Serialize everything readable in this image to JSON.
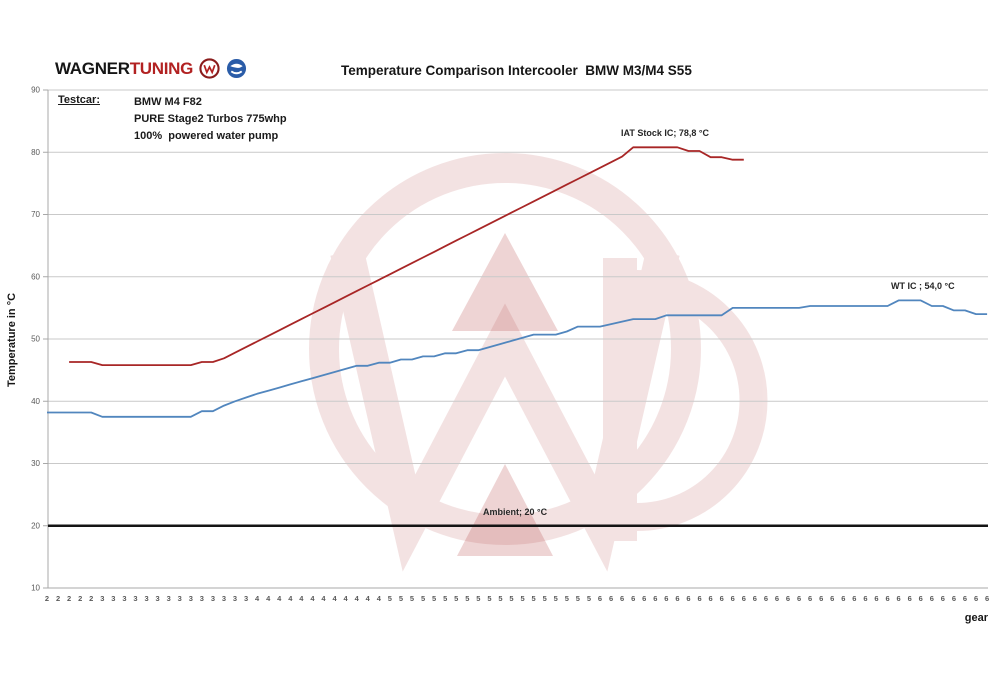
{
  "header": {
    "brand_wagner": "WAGNER",
    "brand_tuning": "TUNING",
    "title": "Temperature Comparison Intercooler  BMW M3/M4 S55"
  },
  "testcar": {
    "label": "Testcar:",
    "lines": [
      "BMW M4 F82",
      "PURE Stage2 Turbos 775whp",
      "100%  powered water pump"
    ]
  },
  "chart_data": {
    "type": "line",
    "title": "Temperature Comparison Intercooler BMW M3/M4 S55",
    "xlabel": "gear",
    "ylabel": "Temperature in °C",
    "ylim": [
      10,
      90
    ],
    "y_ticks": [
      10,
      20,
      30,
      40,
      50,
      60,
      70,
      80,
      90
    ],
    "grid": true,
    "legend": "none",
    "categories_gear": [
      "2",
      "2",
      "2",
      "2",
      "2",
      "3",
      "3",
      "3",
      "3",
      "3",
      "3",
      "3",
      "3",
      "3",
      "3",
      "3",
      "3",
      "3",
      "3",
      "4",
      "4",
      "4",
      "4",
      "4",
      "4",
      "4",
      "4",
      "4",
      "4",
      "4",
      "4",
      "5",
      "5",
      "5",
      "5",
      "5",
      "5",
      "5",
      "5",
      "5",
      "5",
      "5",
      "5",
      "5",
      "5",
      "5",
      "5",
      "5",
      "5",
      "5",
      "6",
      "6",
      "6",
      "6",
      "6",
      "6",
      "6",
      "6",
      "6",
      "6",
      "6",
      "6",
      "6",
      "6",
      "6",
      "6",
      "6",
      "6",
      "6",
      "6",
      "6",
      "6",
      "6",
      "6",
      "6",
      "6",
      "6",
      "6",
      "6",
      "6",
      "6",
      "6",
      "6",
      "6",
      "6",
      "6"
    ],
    "series": [
      {
        "name": "IAT Stock IC",
        "color": "#a82626",
        "final_label_value_c": 78.8,
        "values": [
          null,
          null,
          46.3,
          46.3,
          46.3,
          45.8,
          45.8,
          45.8,
          45.8,
          45.8,
          45.8,
          45.8,
          45.8,
          45.8,
          46.3,
          46.3,
          46.9,
          47.8,
          48.7,
          49.6,
          50.5,
          51.4,
          52.3,
          53.2,
          54.1,
          55,
          55.9,
          56.8,
          57.7,
          58.6,
          59.5,
          60.4,
          61.3,
          62.2,
          63.1,
          64,
          64.9,
          65.8,
          66.7,
          67.6,
          68.5,
          69.4,
          70.3,
          71.2,
          72.1,
          73,
          73.9,
          74.8,
          75.7,
          76.6,
          77.5,
          78.4,
          79.3,
          80.8,
          80.8,
          80.8,
          80.8,
          80.8,
          80.2,
          80.2,
          79.2,
          79.2,
          78.8,
          78.8,
          null,
          null,
          null,
          null,
          null,
          null,
          null,
          null,
          null,
          null,
          null,
          null,
          null,
          null,
          null,
          null,
          null,
          null,
          null,
          null,
          null,
          null
        ]
      },
      {
        "name": "WT IC",
        "color": "#5186be",
        "final_label_value_c": 54.0,
        "values": [
          38.2,
          38.2,
          38.2,
          38.2,
          38.2,
          37.5,
          37.5,
          37.5,
          37.5,
          37.5,
          37.5,
          37.5,
          37.5,
          37.5,
          38.4,
          38.4,
          39.3,
          40,
          40.6,
          41.2,
          41.7,
          42.2,
          42.7,
          43.2,
          43.7,
          44.2,
          44.7,
          45.2,
          45.7,
          45.7,
          46.2,
          46.2,
          46.7,
          46.7,
          47.2,
          47.2,
          47.7,
          47.7,
          48.2,
          48.2,
          48.7,
          49.2,
          49.7,
          50.2,
          50.7,
          50.7,
          50.7,
          51.2,
          52,
          52,
          52,
          52.4,
          52.8,
          53.2,
          53.2,
          53.2,
          53.8,
          53.8,
          53.8,
          53.8,
          53.8,
          53.8,
          55,
          55,
          55,
          55,
          55,
          55,
          55,
          55.3,
          55.3,
          55.3,
          55.3,
          55.3,
          55.3,
          55.3,
          55.3,
          56.2,
          56.2,
          56.2,
          55.3,
          55.3,
          54.6,
          54.6,
          54,
          54
        ]
      },
      {
        "name": "Ambient",
        "color": "#141414",
        "constant": 20
      }
    ],
    "annotations": [
      {
        "id": "iat",
        "text": "IAT Stock IC; 78,8 °C"
      },
      {
        "id": "wt",
        "text": "WT IC ; 54,0 °C"
      },
      {
        "id": "amb",
        "text": "Ambient; 20 °C"
      }
    ]
  },
  "colors": {
    "brand_red": "#b22222",
    "gridline": "#c9c9c9",
    "axis": "#a8a8a8",
    "tick_text": "#595959",
    "annotation_text": "#262626",
    "watermark": "#b23b3b"
  }
}
